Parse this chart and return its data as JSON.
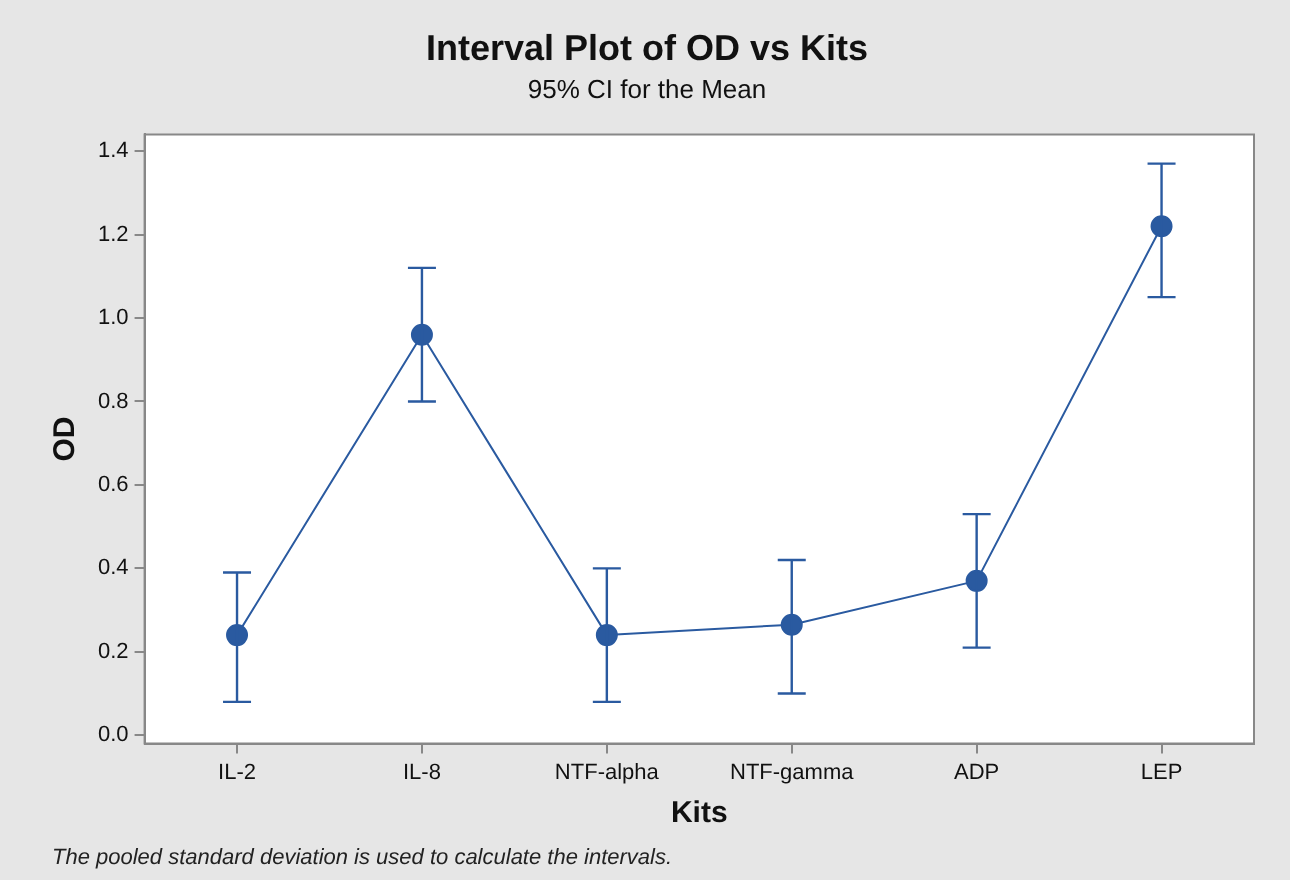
{
  "chart_data": {
    "type": "line",
    "title": "Interval Plot of OD vs Kits",
    "subtitle": "95% CI for the Mean",
    "xlabel": "Kits",
    "ylabel": "OD",
    "categories": [
      "IL-2",
      "IL-8",
      "NTF-alpha",
      "NTF-gamma",
      "ADP",
      "LEP"
    ],
    "series": [
      {
        "color": "#2a5aa0",
        "values": [
          0.24,
          0.96,
          0.24,
          0.265,
          0.37,
          1.22
        ],
        "errors": [
          [
            0.08,
            0.39
          ],
          [
            0.8,
            1.12
          ],
          [
            0.08,
            0.4
          ],
          [
            0.1,
            0.42
          ],
          [
            0.21,
            0.53
          ],
          [
            1.05,
            1.37
          ]
        ]
      }
    ],
    "ylim": [
      -0.02,
      1.44
    ],
    "yticks": [
      {
        "value": 0,
        "label": "0.0"
      },
      {
        "value": 0.2,
        "label": "0.2"
      },
      {
        "value": 0.4,
        "label": "0.4"
      },
      {
        "value": 0.6,
        "label": "0.6"
      },
      {
        "value": 0.8,
        "label": "0.8"
      },
      {
        "value": 1,
        "label": "1.0"
      },
      {
        "value": 1.2,
        "label": "1.2"
      },
      {
        "value": 1.4,
        "label": "1.4"
      }
    ],
    "grid": false,
    "legend": false,
    "marker": "circle",
    "line_style": "solid",
    "annotations": [
      "The pooled standard deviation is used to calculate the intervals."
    ]
  }
}
